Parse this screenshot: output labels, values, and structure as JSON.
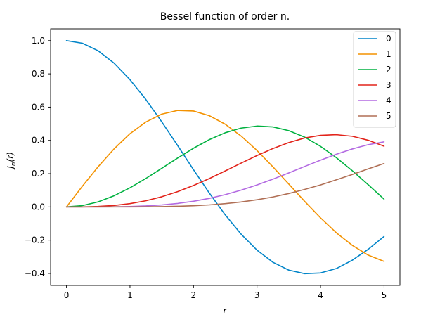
{
  "chart_data": {
    "type": "line",
    "title": "Bessel function of order n.",
    "xlabel": "r",
    "ylabel": "J_n(r)",
    "xlim": [
      -0.25,
      5.25
    ],
    "ylim": [
      -0.472,
      1.071
    ],
    "xticks": [
      0,
      1,
      2,
      3,
      4,
      5
    ],
    "xtick_labels": [
      "0",
      "1",
      "2",
      "3",
      "4",
      "5"
    ],
    "yticks": [
      -0.4,
      -0.2,
      0.0,
      0.2,
      0.4,
      0.6,
      0.8,
      1.0
    ],
    "ytick_labels": [
      "−0.4",
      "−0.2",
      "0.0",
      "0.2",
      "0.4",
      "0.6",
      "0.8",
      "1.0"
    ],
    "zero_line": true,
    "legend_position": "top-right",
    "x": [
      0,
      0.25,
      0.5,
      0.75,
      1,
      1.25,
      1.5,
      1.75,
      2,
      2.25,
      2.5,
      2.75,
      3,
      3.25,
      3.5,
      3.75,
      4,
      4.25,
      4.5,
      4.75,
      5
    ],
    "series": [
      {
        "name": "0",
        "color": "#0084c8",
        "values": [
          1.0,
          0.9844,
          0.9385,
          0.8642,
          0.7652,
          0.6459,
          0.5118,
          0.369,
          0.2239,
          0.0827,
          -0.0484,
          -0.1641,
          -0.2601,
          -0.3328,
          -0.3801,
          -0.4014,
          -0.3971,
          -0.3707,
          -0.3205,
          -0.2551,
          -0.1776
        ]
      },
      {
        "name": "1",
        "color": "#f39200",
        "values": [
          0.0,
          0.124,
          0.2423,
          0.3492,
          0.4401,
          0.5106,
          0.5579,
          0.5802,
          0.5767,
          0.5484,
          0.4971,
          0.426,
          0.3391,
          0.2411,
          0.1374,
          0.0334,
          -0.066,
          -0.1559,
          -0.2311,
          -0.2898,
          -0.3276
        ]
      },
      {
        "name": "2",
        "color": "#00b140",
        "values": [
          0.0,
          0.0078,
          0.0306,
          0.0671,
          0.1149,
          0.1711,
          0.2321,
          0.294,
          0.3528,
          0.4047,
          0.4461,
          0.4739,
          0.4861,
          0.4811,
          0.4586,
          0.4195,
          0.3641,
          0.2958,
          0.2178,
          0.1337,
          0.0466
        ]
      },
      {
        "name": "3",
        "color": "#e2231a",
        "values": [
          0.0,
          0.0003,
          0.0026,
          0.0085,
          0.0196,
          0.0369,
          0.061,
          0.0919,
          0.1289,
          0.1706,
          0.2166,
          0.2632,
          0.3091,
          0.351,
          0.3868,
          0.4145,
          0.4302,
          0.4343,
          0.4247,
          0.4008,
          0.3648
        ]
      },
      {
        "name": "4",
        "color": "#b36ae2",
        "values": [
          0.0,
          0.0,
          0.0002,
          0.0008,
          0.0025,
          0.0059,
          0.0118,
          0.0209,
          0.034,
          0.0515,
          0.0738,
          0.1007,
          0.132,
          0.167,
          0.2044,
          0.2432,
          0.2811,
          0.3169,
          0.3484,
          0.3741,
          0.3912
        ]
      },
      {
        "name": "5",
        "color": "#b06f55",
        "values": [
          0.0,
          0.0,
          0.0,
          0.0001,
          0.0002,
          0.0008,
          0.0018,
          0.0038,
          0.007,
          0.012,
          0.0195,
          0.0297,
          0.043,
          0.0597,
          0.0804,
          0.1049,
          0.1321,
          0.1631,
          0.1947,
          0.2287,
          0.2611
        ]
      }
    ]
  }
}
